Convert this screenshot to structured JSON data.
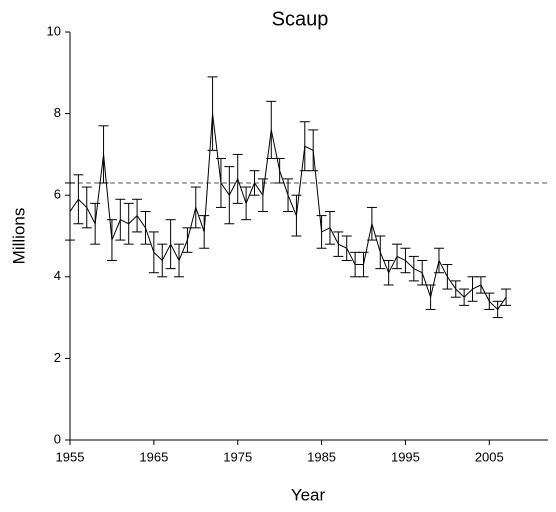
{
  "chart_data": {
    "type": "line",
    "title": "Scaup",
    "x_label": "Year",
    "y_label": "Millions",
    "x": [
      1955,
      1956,
      1957,
      1958,
      1959,
      1960,
      1961,
      1962,
      1963,
      1964,
      1965,
      1966,
      1967,
      1968,
      1969,
      1970,
      1971,
      1972,
      1973,
      1974,
      1975,
      1976,
      1977,
      1978,
      1979,
      1980,
      1981,
      1982,
      1983,
      1984,
      1985,
      1986,
      1987,
      1988,
      1989,
      1990,
      1991,
      1992,
      1993,
      1994,
      1995,
      1996,
      1997,
      1998,
      1999,
      2000,
      2001,
      2002,
      2003,
      2004,
      2005,
      2006,
      2007
    ],
    "values": [
      5.6,
      5.9,
      5.7,
      5.3,
      7.0,
      4.9,
      5.4,
      5.3,
      5.5,
      5.2,
      4.6,
      4.4,
      4.8,
      4.4,
      4.9,
      5.7,
      5.1,
      8.0,
      6.3,
      6.0,
      6.4,
      5.8,
      6.3,
      6.0,
      7.6,
      6.6,
      6.0,
      5.5,
      7.2,
      7.1,
      5.1,
      5.2,
      4.8,
      4.7,
      4.3,
      4.3,
      5.3,
      4.6,
      4.1,
      4.5,
      4.4,
      4.2,
      4.1,
      3.5,
      4.4,
      4.0,
      3.7,
      3.5,
      3.7,
      3.8,
      3.4,
      3.2,
      3.5
    ],
    "errors": [
      0.7,
      0.6,
      0.5,
      0.5,
      0.7,
      0.5,
      0.5,
      0.5,
      0.4,
      0.4,
      0.5,
      0.4,
      0.6,
      0.4,
      0.3,
      0.5,
      0.4,
      0.9,
      0.6,
      0.7,
      0.6,
      0.4,
      0.3,
      0.4,
      0.7,
      0.3,
      0.4,
      0.5,
      0.6,
      0.5,
      0.4,
      0.4,
      0.3,
      0.3,
      0.3,
      0.3,
      0.4,
      0.4,
      0.3,
      0.3,
      0.3,
      0.3,
      0.3,
      0.3,
      0.3,
      0.3,
      0.2,
      0.2,
      0.3,
      0.2,
      0.2,
      0.2,
      0.2
    ],
    "color": "#000000",
    "reference_line": 6.3,
    "xlim": [
      1955,
      2012
    ],
    "ylim": [
      0,
      10
    ],
    "xticks": [
      1955,
      1965,
      1975,
      1985,
      1995,
      2005
    ],
    "yticks": [
      0,
      2,
      4,
      6,
      8,
      10
    ]
  }
}
